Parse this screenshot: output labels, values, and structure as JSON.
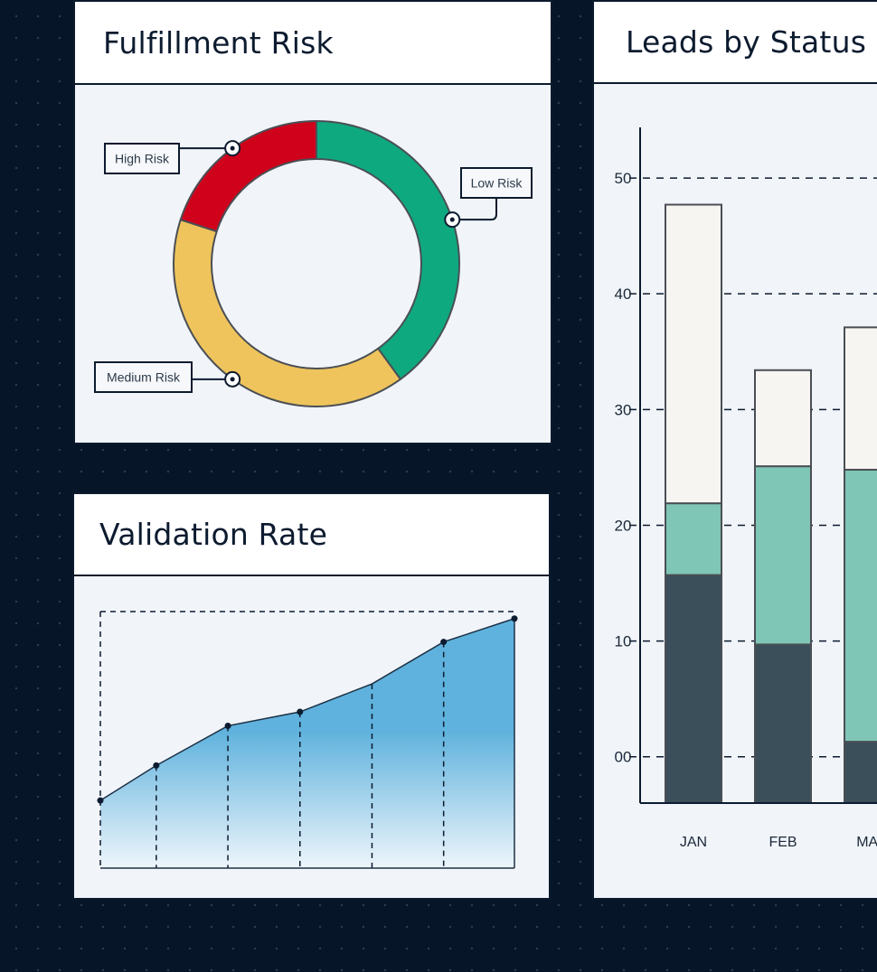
{
  "cards": {
    "risk": {
      "title": "Fulfillment Risk"
    },
    "validation": {
      "title": "Validation Rate"
    },
    "leads": {
      "title": "Leads by Status"
    }
  },
  "colors": {
    "background": "#061528",
    "high_risk": "#d0021b",
    "low_risk": "#0fa97f",
    "medium_risk": "#efc45c",
    "area_top": "#5fb2dd",
    "area_bottom": "#eef5fb",
    "bar_bottom": "#3b4f5b",
    "bar_middle": "#80c6b6",
    "bar_top": "#f7f5f2"
  },
  "chart_data": [
    {
      "type": "pie",
      "title": "Fulfillment Risk",
      "donut": true,
      "slices": [
        {
          "label": "Low Risk",
          "value": 40,
          "color": "#0fa97f"
        },
        {
          "label": "Medium Risk",
          "value": 40,
          "color": "#efc45c"
        },
        {
          "label": "High Risk",
          "value": 20,
          "color": "#d0021b"
        }
      ]
    },
    {
      "type": "area",
      "title": "Validation Rate",
      "x": [
        1,
        2,
        3,
        4,
        5,
        6,
        7
      ],
      "values": [
        29,
        44,
        61,
        67,
        79,
        97,
        107
      ],
      "ylim": [
        0,
        110
      ],
      "grid": "vertical dashed"
    },
    {
      "type": "bar",
      "stacked": true,
      "title": "Leads by Status",
      "categories": [
        "JAN",
        "FEB",
        "MAR"
      ],
      "yticks": [
        "00",
        "10",
        "20",
        "30",
        "40",
        "50"
      ],
      "ylim": [
        -4,
        55
      ],
      "grid": "horizontal dashed",
      "series": [
        {
          "values": [
            19.7,
            13.7,
            5.3
          ],
          "color": "#3b4f5b"
        },
        {
          "values": [
            6.2,
            15.4,
            23.5
          ],
          "color": "#80c6b6"
        },
        {
          "values": [
            25.8,
            8.3,
            12.3
          ],
          "color": "#f7f5f2"
        }
      ]
    }
  ]
}
